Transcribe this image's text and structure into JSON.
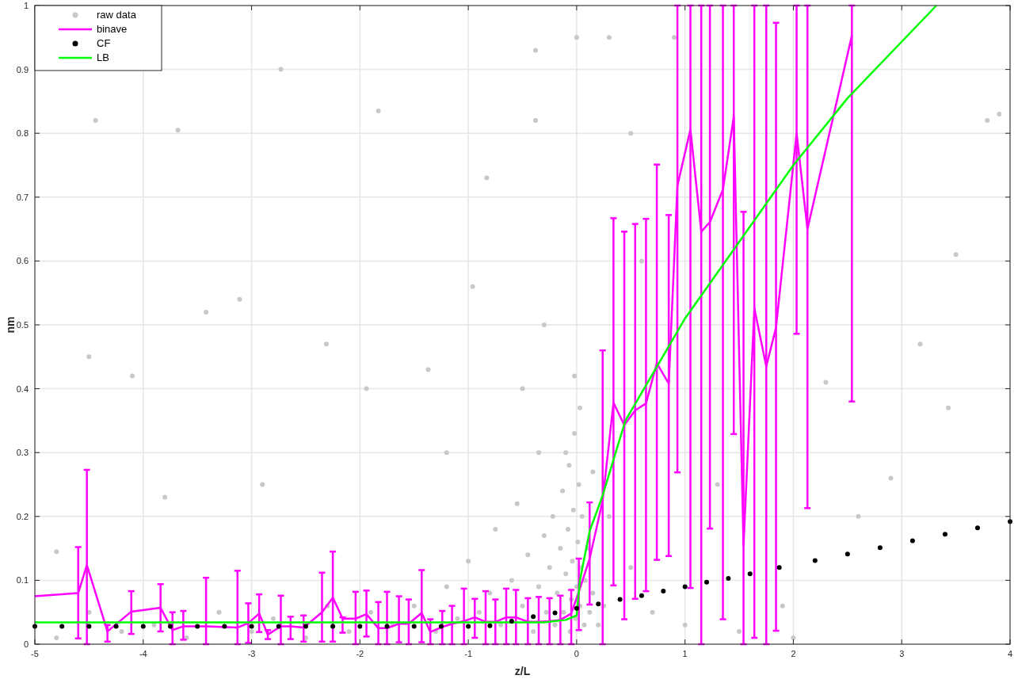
{
  "chart_data": {
    "type": "scatter",
    "xlabel": "z/L",
    "ylabel": "nm",
    "xlim": [
      -5,
      4
    ],
    "ylim": [
      0,
      1
    ],
    "xticks": [
      -5,
      -4,
      -3,
      -2,
      -1,
      0,
      1,
      2,
      3,
      4
    ],
    "yticks": [
      0,
      0.1,
      0.2,
      0.3,
      0.4,
      0.5,
      0.6,
      0.7,
      0.8,
      0.9,
      1
    ],
    "grid": true,
    "legend": "top left",
    "series": [
      {
        "name": "raw data",
        "marker": "circle",
        "color": "#c8c8c8",
        "x": [
          -0.9,
          -0.8,
          -0.7,
          -0.6,
          -0.5,
          -0.45,
          -0.4,
          -0.35,
          -0.3,
          -0.28,
          -0.25,
          -0.22,
          -0.2,
          -0.18,
          -0.15,
          -0.13,
          -0.12,
          -0.1,
          -0.08,
          -0.07,
          -0.06,
          -0.05,
          -0.04,
          -0.03,
          -0.02,
          -0.01,
          0,
          0.01,
          0.02,
          0.03,
          0.04,
          0.05,
          0.07,
          0.08,
          0.1,
          0.12,
          0.15,
          0.2,
          0.25,
          -0.55,
          -0.75,
          -1.0,
          -1.1,
          -1.2,
          -1.3,
          -1.5,
          -1.7,
          -1.9,
          -2.1,
          -2.3,
          -2.5,
          -2.8,
          -3.0,
          -3.3,
          -3.6,
          -3.9,
          -4.2,
          -4.5,
          -4.8,
          -0.02,
          0.03,
          -0.1,
          0.15,
          0.3,
          0.5,
          0.7,
          1.0,
          1.5,
          2.0,
          -0.35,
          -4.8,
          -4.5,
          -4.44,
          -4.1,
          -3.68,
          -3.8,
          -3.42,
          -3.11,
          -2.9,
          -2.73,
          -2.31,
          -1.94,
          -1.83,
          -1.37,
          -1.2,
          -0.96,
          -0.83,
          -0.5,
          -0.38,
          -0.38,
          -0.3,
          0,
          0.3,
          0.5,
          0.6,
          0.9,
          1.3,
          2.3,
          2.9,
          3.17,
          3.43,
          3.5,
          3.79,
          3.9,
          2.6,
          1.9
        ],
        "values": [
          0.05,
          0.08,
          0.03,
          0.1,
          0.06,
          0.14,
          0.02,
          0.09,
          0.17,
          0.05,
          0.12,
          0.2,
          0.03,
          0.08,
          0.15,
          0.24,
          0.05,
          0.11,
          0.18,
          0.28,
          0.02,
          0.07,
          0.13,
          0.21,
          0.33,
          0.04,
          0.09,
          0.16,
          0.25,
          0.06,
          0.12,
          0.2,
          0.03,
          0.1,
          0.15,
          0.05,
          0.08,
          0.03,
          0.06,
          0.22,
          0.18,
          0.13,
          0.04,
          0.09,
          0.02,
          0.06,
          0.03,
          0.05,
          0.02,
          0.06,
          0.01,
          0.04,
          0.02,
          0.05,
          0.01,
          0.03,
          0.02,
          0.05,
          0.01,
          0.42,
          0.37,
          0.3,
          0.27,
          0.2,
          0.12,
          0.05,
          0.03,
          0.02,
          0.01,
          0.3,
          0.145,
          0.45,
          0.82,
          0.42,
          0.805,
          0.23,
          0.52,
          0.54,
          0.25,
          0.9,
          0.47,
          0.4,
          0.835,
          0.43,
          0.3,
          0.56,
          0.73,
          0.4,
          0.82,
          0.93,
          0.5,
          0.95,
          0.95,
          0.8,
          0.6,
          0.95,
          0.25,
          0.41,
          0.26,
          0.47,
          0.37,
          0.61,
          0.82,
          0.83,
          0.2,
          0.06
        ]
      },
      {
        "name": "binave",
        "type": "line",
        "marker": "none",
        "color": "#ff00ff",
        "x": [
          -5,
          -4.6,
          -4.52,
          -4.33,
          -4.11,
          -3.84,
          -3.73,
          -3.63,
          -3.42,
          -3.13,
          -3.03,
          -2.93,
          -2.85,
          -2.73,
          -2.64,
          -2.52,
          -2.35,
          -2.25,
          -2.16,
          -2.04,
          -1.94,
          -1.83,
          -1.75,
          -1.64,
          -1.55,
          -1.43,
          -1.35,
          -1.24,
          -1.15,
          -1.04,
          -0.94,
          -0.84,
          -0.75,
          -0.65,
          -0.56,
          -0.45,
          -0.35,
          -0.25,
          -0.15,
          -0.05,
          0.02,
          0.12,
          0.24,
          0.34,
          0.44,
          0.54,
          0.64,
          0.74,
          0.85,
          0.93,
          1.05,
          1.15,
          1.23,
          1.35,
          1.45,
          1.54,
          1.64,
          1.75,
          1.84,
          2.03,
          2.13,
          2.54
        ],
        "values": [
          0.075,
          0.08,
          0.124,
          0.02,
          0.051,
          0.057,
          0.022,
          0.028,
          0.028,
          0.026,
          0.033,
          0.048,
          0.015,
          0.028,
          0.028,
          0.026,
          0.05,
          0.073,
          0.04,
          0.04,
          0.047,
          0.025,
          0.025,
          0.032,
          0.032,
          0.049,
          0.019,
          0.027,
          0.032,
          0.036,
          0.042,
          0.035,
          0.035,
          0.042,
          0.042,
          0.035,
          0.035,
          0.036,
          0.038,
          0.048,
          0.082,
          0.134,
          0.225,
          0.378,
          0.343,
          0.366,
          0.377,
          0.44,
          0.408,
          0.718,
          0.806,
          0.646,
          0.661,
          0.712,
          0.826,
          0.154,
          0.526,
          0.435,
          0.496,
          0.8,
          0.65,
          0.953
        ],
        "errors": [
          null,
          [
            0.009,
            0.152
          ],
          [
            0,
            0.273
          ],
          [
            0.004,
            0.03
          ],
          [
            0.016,
            0.083
          ],
          [
            0.02,
            0.094
          ],
          [
            0,
            0.05
          ],
          [
            0.007,
            0.052
          ],
          [
            0,
            0.104
          ],
          [
            0,
            0.115
          ],
          [
            0.002,
            0.064
          ],
          [
            0.019,
            0.078
          ],
          [
            0.008,
            0.022
          ],
          [
            0,
            0.076
          ],
          [
            0.008,
            0.043
          ],
          [
            0.004,
            0.045
          ],
          [
            0.004,
            0.112
          ],
          [
            0.004,
            0.145
          ],
          [
            0.018,
            0.042
          ],
          [
            0,
            0.082
          ],
          [
            0.012,
            0.084
          ],
          [
            0,
            0.066
          ],
          [
            0,
            0.082
          ],
          [
            0.003,
            0.075
          ],
          [
            0,
            0.07
          ],
          [
            0.003,
            0.116
          ],
          [
            0,
            0.039
          ],
          [
            0,
            0.052
          ],
          [
            0,
            0.06
          ],
          [
            0,
            0.087
          ],
          [
            0.01,
            0.071
          ],
          [
            0,
            0.083
          ],
          [
            0,
            0.07
          ],
          [
            0,
            0.087
          ],
          [
            0,
            0.085
          ],
          [
            0,
            0.072
          ],
          [
            0,
            0.074
          ],
          [
            0,
            0.072
          ],
          [
            0,
            0.076
          ],
          [
            0,
            0.085
          ],
          [
            0.022,
            0.134
          ],
          [
            0.062,
            0.222
          ],
          [
            0,
            0.46
          ],
          [
            0.092,
            0.667
          ],
          [
            0.039,
            0.646
          ],
          [
            0.071,
            0.658
          ],
          [
            0.083,
            0.666
          ],
          [
            0.132,
            0.751
          ],
          [
            0.138,
            0.672
          ],
          [
            0.269,
            1
          ],
          [
            0.088,
            1
          ],
          [
            0,
            1
          ],
          [
            0.181,
            1
          ],
          [
            0.039,
            1
          ],
          [
            0.329,
            1
          ],
          [
            0,
            0.677
          ],
          [
            0.01,
            1
          ],
          [
            0,
            1
          ],
          [
            0.021,
            0.973
          ],
          [
            0.486,
            1
          ],
          [
            0.213,
            1
          ],
          [
            0.38,
            1
          ]
        ]
      },
      {
        "name": "CF",
        "marker": "circle",
        "color": "#000000",
        "x": [
          -5,
          -4.75,
          -4.5,
          -4.25,
          -4,
          -3.75,
          -3.5,
          -3.25,
          -3,
          -2.75,
          -2.5,
          -2.25,
          -2,
          -1.75,
          -1.5,
          -1.25,
          -1,
          -0.8,
          -0.6,
          -0.4,
          -0.2,
          0,
          0.2,
          0.4,
          0.6,
          0.8,
          1,
          1.2,
          1.4,
          1.6,
          1.87,
          2.2,
          2.5,
          2.8,
          3.1,
          3.4,
          3.7,
          4
        ],
        "values": [
          0.028,
          0.028,
          0.028,
          0.028,
          0.028,
          0.028,
          0.028,
          0.028,
          0.028,
          0.028,
          0.028,
          0.028,
          0.028,
          0.028,
          0.028,
          0.028,
          0.028,
          0.029,
          0.036,
          0.043,
          0.049,
          0.056,
          0.063,
          0.07,
          0.076,
          0.083,
          0.09,
          0.097,
          0.103,
          0.11,
          0.12,
          0.131,
          0.141,
          0.151,
          0.162,
          0.172,
          0.182,
          0.192
        ]
      },
      {
        "name": "LB",
        "type": "line",
        "marker": "none",
        "color": "#00ff00",
        "x": [
          -5,
          -0.3,
          -0.1,
          0,
          0.03,
          0.12,
          0.24,
          0.45,
          1,
          1.5,
          2,
          2.5,
          3.32
        ],
        "values": [
          0.034,
          0.034,
          0.038,
          0.045,
          0.1,
          0.177,
          0.233,
          0.35,
          0.51,
          0.63,
          0.75,
          0.855,
          1
        ]
      }
    ]
  }
}
